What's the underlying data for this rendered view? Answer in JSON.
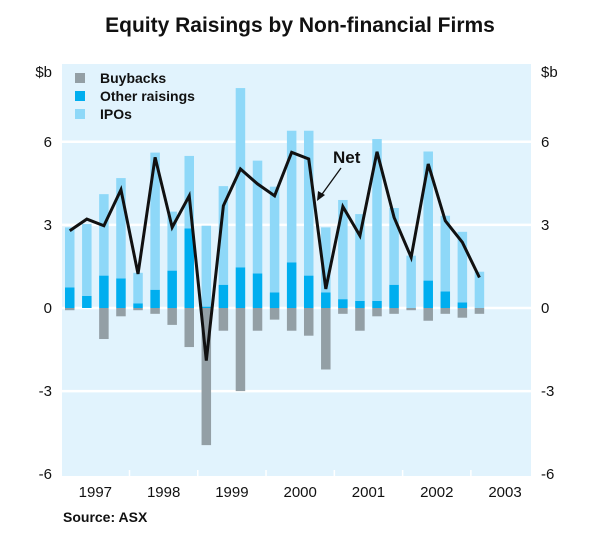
{
  "chart_data": {
    "type": "bar",
    "title": "Equity Raisings by Non-financial Firms",
    "ylabel_left": "$b",
    "ylabel_right": "$b",
    "ylim": [
      -6,
      9
    ],
    "yticks": [
      6,
      3,
      0,
      -3,
      -6
    ],
    "grid": true,
    "legend_position": "top-left",
    "x_tick_labels": [
      "1997",
      "1998",
      "1999",
      "2000",
      "2001",
      "2002",
      "2003"
    ],
    "x_note": "quarterly observations, 1997 Q1 to 2003 Q1",
    "stacked": true,
    "series": [
      {
        "name": "Buybacks",
        "color": "#939FA5",
        "values": [
          -0.08,
          0,
          -1.12,
          -0.3,
          -0.08,
          -0.21,
          -0.61,
          -1.41,
          -4.95,
          -0.82,
          -3.0,
          -0.82,
          -0.42,
          -0.82,
          -1.0,
          -2.22,
          -0.21,
          -0.82,
          -0.3,
          -0.21,
          -0.08,
          -0.46,
          -0.21,
          -0.35,
          -0.21
        ]
      },
      {
        "name": "Other raisings",
        "color": "#00AEEF",
        "values": [
          0.74,
          0.44,
          1.17,
          1.07,
          0.17,
          0.66,
          1.35,
          2.87,
          0.05,
          0.84,
          1.47,
          1.25,
          0.56,
          1.65,
          1.17,
          0.56,
          0.32,
          0.26,
          0.26,
          0.84,
          0,
          0.99,
          0.6,
          0.2,
          0
        ]
      },
      {
        "name": "IPOs",
        "color": "#8ED8F8",
        "values": [
          2.17,
          2.59,
          2.94,
          3.62,
          1.1,
          4.95,
          2.13,
          2.62,
          2.92,
          3.56,
          6.47,
          4.07,
          3.82,
          4.75,
          5.23,
          2.35,
          3.58,
          3.13,
          5.84,
          2.77,
          1.89,
          4.66,
          2.73,
          2.55,
          1.31
        ]
      }
    ],
    "line": {
      "name": "Net",
      "color": "#111111",
      "values": [
        2.79,
        3.21,
        2.97,
        4.27,
        1.23,
        5.44,
        2.91,
        4.05,
        -1.9,
        3.69,
        5.02,
        4.48,
        4.05,
        5.62,
        5.38,
        0.69,
        3.66,
        2.61,
        5.64,
        3.27,
        1.83,
        5.2,
        3.15,
        2.37,
        1.1
      ]
    },
    "source": "Source: ASX"
  },
  "colors": {
    "plot_background": "#E1F3FD",
    "grid": "#FFFFFF"
  }
}
